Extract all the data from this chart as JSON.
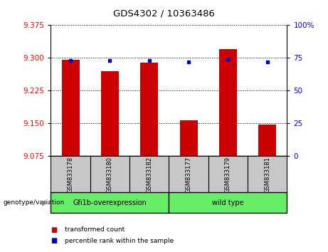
{
  "title": "GDS4302 / 10363486",
  "samples": [
    "GSM833178",
    "GSM833180",
    "GSM833182",
    "GSM833177",
    "GSM833179",
    "GSM833181"
  ],
  "red_values": [
    9.295,
    9.27,
    9.29,
    9.158,
    9.32,
    9.148
  ],
  "blue_values": [
    73,
    73,
    73,
    72,
    74,
    72
  ],
  "y_min": 9.075,
  "y_max": 9.375,
  "y_ticks": [
    9.075,
    9.15,
    9.225,
    9.3,
    9.375
  ],
  "y2_ticks": [
    0,
    25,
    50,
    75,
    100
  ],
  "group_label": "genotype/variation",
  "group1_label": "Gfi1b-overexpression",
  "group2_label": "wild type",
  "legend_red": "transformed count",
  "legend_blue": "percentile rank within the sample",
  "bar_color": "#CC0000",
  "dot_color": "#0000CC",
  "bar_width": 0.45,
  "tick_label_bg": "#C8C8C8",
  "green_color": "#66EE66"
}
